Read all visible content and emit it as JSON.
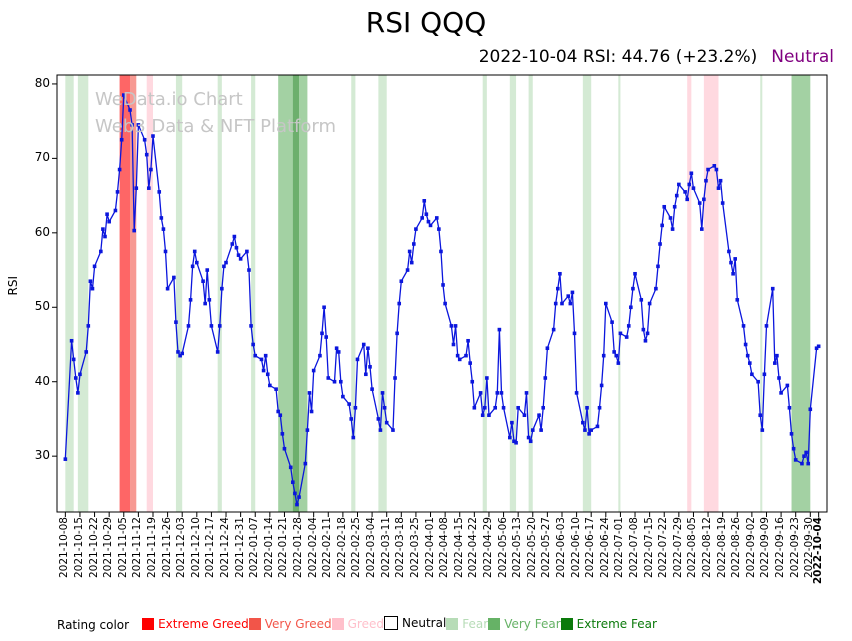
{
  "header": {
    "title": "RSI QQQ",
    "subtitle_stats": "2022-10-04 RSI: 44.76 (+23.2%)",
    "subtitle_rating": "Neutral",
    "rating_color": "#800080"
  },
  "watermark": {
    "line1": "WeData.io Chart",
    "line2": "Web3 Data & NFT Platform"
  },
  "axes": {
    "ylabel": "RSI",
    "yticks": [
      30,
      40,
      50,
      60,
      70,
      80
    ]
  },
  "legend": {
    "title": "Rating color",
    "items": [
      {
        "label": "Extreme Greed",
        "color": "#fe0000"
      },
      {
        "label": "Very Greed",
        "color": "#f25549"
      },
      {
        "label": "Greed",
        "color": "#ffc0cb"
      },
      {
        "label": "Neutral",
        "color": "#ffffff"
      },
      {
        "label": "Fear",
        "color": "#b7dcb7"
      },
      {
        "label": "Very Fear",
        "color": "#66b266"
      },
      {
        "label": "Extreme Fear",
        "color": "#0b7a0b"
      }
    ]
  },
  "chart_data": {
    "type": "line",
    "title": "RSI QQQ",
    "series_name": "RSI",
    "ylabel": "RSI",
    "xlabel": "",
    "start_date": "2021-10-08",
    "end_date": "2022-10-04",
    "frequency": "weekdays (trading days)",
    "line_color": "#0b16dd",
    "marker": "square",
    "ylim": [
      22.5,
      81.2
    ],
    "grid": false,
    "legend_position": "bottom",
    "x_tick_labels": [
      "2021-10-08",
      "2021-10-15",
      "2021-10-22",
      "2021-10-29",
      "2021-11-05",
      "2021-11-12",
      "2021-11-19",
      "2021-11-26",
      "2021-12-03",
      "2021-12-10",
      "2021-12-17",
      "2021-12-24",
      "2021-12-31",
      "2022-01-07",
      "2022-01-14",
      "2022-01-21",
      "2022-01-28",
      "2022-02-04",
      "2022-02-11",
      "2022-02-18",
      "2022-02-25",
      "2022-03-04",
      "2022-03-11",
      "2022-03-18",
      "2022-03-25",
      "2022-04-01",
      "2022-04-08",
      "2022-04-15",
      "2022-04-22",
      "2022-04-29",
      "2022-05-06",
      "2022-05-13",
      "2022-05-20",
      "2022-05-27",
      "2022-06-03",
      "2022-06-10",
      "2022-06-17",
      "2022-06-24",
      "2022-07-01",
      "2022-07-08",
      "2022-07-15",
      "2022-07-22",
      "2022-07-29",
      "2022-08-05",
      "2022-08-12",
      "2022-08-19",
      "2022-08-26",
      "2022-09-02",
      "2022-09-09",
      "2022-09-16",
      "2022-09-23",
      "2022-09-30",
      "2022-10-04"
    ],
    "values": [
      29.6,
      45.5,
      43.0,
      40.5,
      38.5,
      41.0,
      44.0,
      47.5,
      53.5,
      52.5,
      55.5,
      57.5,
      60.5,
      59.5,
      62.5,
      61.5,
      63.0,
      65.5,
      68.5,
      72.5,
      78.5,
      76.5,
      74.5,
      60.3,
      66.0,
      74.5,
      72.5,
      70.5,
      66.0,
      68.5,
      73.0,
      65.5,
      62.0,
      60.5,
      57.5,
      52.5,
      54.0,
      48.0,
      44.0,
      43.5,
      43.8,
      47.5,
      51.0,
      55.5,
      57.5,
      56.0,
      53.5,
      50.5,
      55.0,
      51.0,
      47.5,
      44.0,
      47.5,
      52.5,
      55.5,
      56.0,
      58.5,
      59.5,
      58.0,
      57.0,
      56.5,
      57.5,
      55.0,
      47.5,
      45.0,
      43.5,
      43.0,
      41.5,
      43.5,
      41.0,
      39.5,
      39.0,
      36.0,
      35.5,
      33.0,
      31.0,
      28.5,
      26.5,
      25.0,
      23.5,
      24.5,
      29.0,
      33.5,
      38.5,
      36.0,
      41.5,
      43.5,
      46.5,
      50.0,
      46.0,
      40.5,
      40.0,
      44.5,
      44.0,
      40.0,
      38.0,
      37.0,
      35.0,
      32.5,
      36.5,
      43.0,
      45.0,
      41.0,
      44.5,
      42.0,
      39.0,
      35.0,
      33.5,
      38.5,
      36.5,
      34.5,
      33.5,
      40.5,
      46.5,
      50.5,
      53.5,
      55.0,
      57.5,
      56.0,
      58.5,
      60.5,
      62.0,
      64.3,
      62.5,
      61.5,
      61.0,
      62.0,
      60.5,
      57.5,
      53.0,
      50.5,
      47.5,
      45.0,
      47.5,
      43.5,
      43.0,
      43.5,
      45.5,
      42.5,
      40.0,
      36.5,
      38.5,
      35.5,
      36.5,
      40.5,
      35.5,
      36.5,
      38.5,
      47.0,
      38.5,
      36.5,
      32.5,
      34.5,
      32.0,
      31.8,
      36.5,
      35.5,
      38.5,
      32.5,
      32.0,
      33.5,
      35.5,
      33.5,
      36.5,
      40.5,
      44.5,
      47.0,
      50.5,
      52.5,
      54.5,
      50.5,
      51.5,
      50.5,
      52.0,
      46.5,
      38.5,
      34.5,
      33.5,
      36.5,
      33.0,
      33.5,
      34.0,
      36.5,
      39.5,
      43.5,
      50.5,
      48.0,
      44.0,
      43.5,
      42.5,
      46.5,
      46.0,
      47.5,
      50.0,
      52.5,
      54.5,
      51.0,
      47.0,
      45.5,
      46.5,
      50.5,
      52.5,
      55.5,
      58.5,
      61.0,
      63.5,
      62.0,
      60.5,
      63.5,
      65.0,
      66.5,
      65.5,
      64.5,
      66.5,
      68.0,
      66.0,
      64.0,
      60.5,
      64.5,
      67.0,
      68.5,
      69.0,
      68.5,
      66.0,
      67.0,
      64.0,
      57.5,
      56.0,
      54.5,
      56.5,
      51.0,
      47.5,
      45.0,
      43.5,
      42.5,
      41.0,
      40.0,
      35.5,
      33.5,
      41.0,
      47.5,
      52.5,
      42.5,
      43.5,
      40.5,
      38.5,
      39.5,
      36.5,
      33.0,
      31.0,
      29.5,
      29.0,
      30.0,
      30.5,
      29.0,
      36.3,
      44.5,
      44.76
    ],
    "bands": [
      {
        "category": "Fear",
        "from": "2021-10-08",
        "to": "2021-10-12"
      },
      {
        "category": "Fear",
        "from": "2021-10-14",
        "to": "2021-10-19"
      },
      {
        "category": "Extreme Greed",
        "from": "2021-11-03",
        "to": "2021-11-08"
      },
      {
        "category": "Very Greed",
        "from": "2021-11-08",
        "to": "2021-11-11"
      },
      {
        "category": "Greed",
        "from": "2021-11-16",
        "to": "2021-11-19"
      },
      {
        "category": "Fear",
        "from": "2021-11-30",
        "to": "2021-12-03"
      },
      {
        "category": "Fear",
        "from": "2021-12-20",
        "to": "2021-12-22"
      },
      {
        "category": "Fear",
        "from": "2022-01-05",
        "to": "2022-01-07"
      },
      {
        "category": "Very Fear",
        "from": "2022-01-18",
        "to": "2022-01-25"
      },
      {
        "category": "Extreme Fear",
        "from": "2022-01-25",
        "to": "2022-01-28"
      },
      {
        "category": "Very Fear",
        "from": "2022-01-28",
        "to": "2022-02-01"
      },
      {
        "category": "Fear",
        "from": "2022-02-22",
        "to": "2022-02-24"
      },
      {
        "category": "Fear",
        "from": "2022-03-07",
        "to": "2022-03-11"
      },
      {
        "category": "Fear",
        "from": "2022-04-26",
        "to": "2022-04-28"
      },
      {
        "category": "Fear",
        "from": "2022-05-09",
        "to": "2022-05-12"
      },
      {
        "category": "Fear",
        "from": "2022-05-18",
        "to": "2022-05-20"
      },
      {
        "category": "Fear",
        "from": "2022-06-13",
        "to": "2022-06-17"
      },
      {
        "category": "Fear",
        "from": "2022-06-30",
        "to": "2022-07-01"
      },
      {
        "category": "Greed",
        "from": "2022-08-02",
        "to": "2022-08-04"
      },
      {
        "category": "Greed",
        "from": "2022-08-10",
        "to": "2022-08-17"
      },
      {
        "category": "Fear",
        "from": "2022-09-06",
        "to": "2022-09-07"
      },
      {
        "category": "Very Fear",
        "from": "2022-09-21",
        "to": "2022-09-30"
      }
    ]
  }
}
